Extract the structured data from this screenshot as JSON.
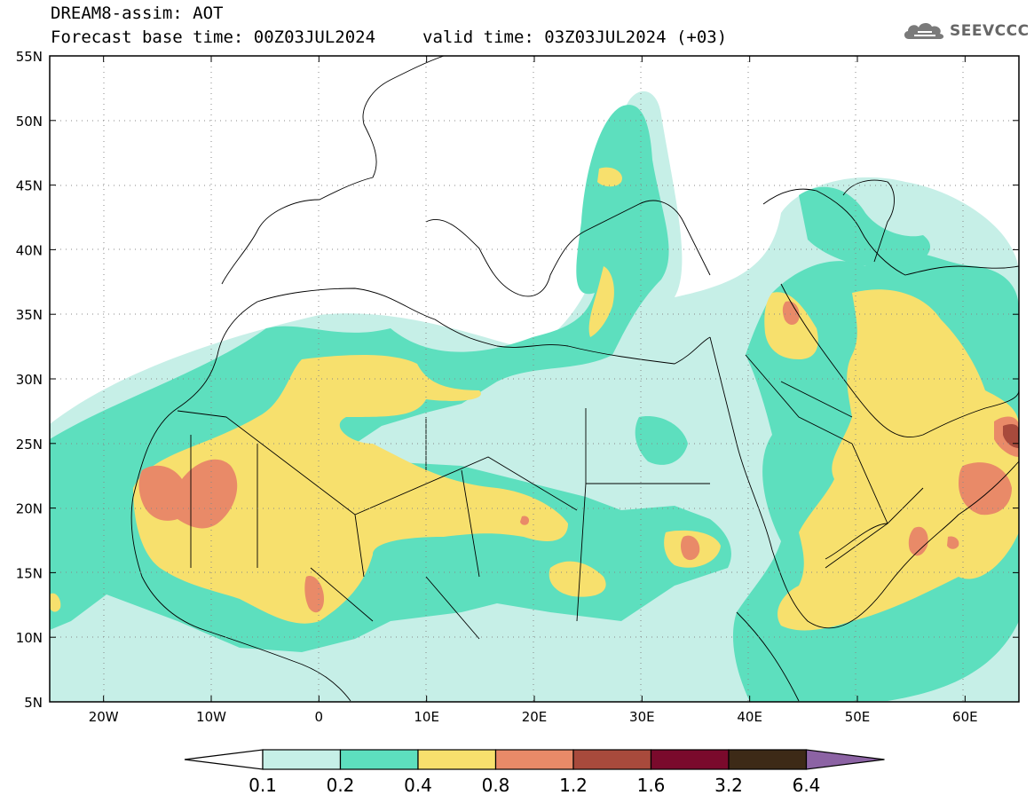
{
  "header": {
    "title": "DREAM8-assim: AOT",
    "base_time": "Forecast base time: 00Z03JUL2024",
    "valid_time": "valid time: 03Z03JUL2024 (+03)"
  },
  "logo": {
    "text": "SEEVCCC",
    "icon": "cloud-icon"
  },
  "map": {
    "lat_labels": [
      "55N",
      "50N",
      "45N",
      "40N",
      "35N",
      "30N",
      "25N",
      "20N",
      "15N",
      "10N",
      "5N"
    ],
    "lon_labels": [
      "20W",
      "10W",
      "0",
      "10E",
      "20E",
      "30E",
      "40E",
      "50E",
      "60E"
    ],
    "lat_range": [
      5,
      55
    ],
    "lon_range": [
      -25,
      65
    ],
    "grid": "dotted"
  },
  "colorbar": {
    "labels": [
      "0.1",
      "0.2",
      "0.4",
      "0.8",
      "1.2",
      "1.6",
      "3.2",
      "6.4"
    ],
    "colors": [
      "#ffffff",
      "#c6efe7",
      "#5ddfbe",
      "#f7e06d",
      "#e98a68",
      "#a84a3c",
      "#7a0a2c",
      "#3d2a17",
      "#8c63a4"
    ]
  }
}
